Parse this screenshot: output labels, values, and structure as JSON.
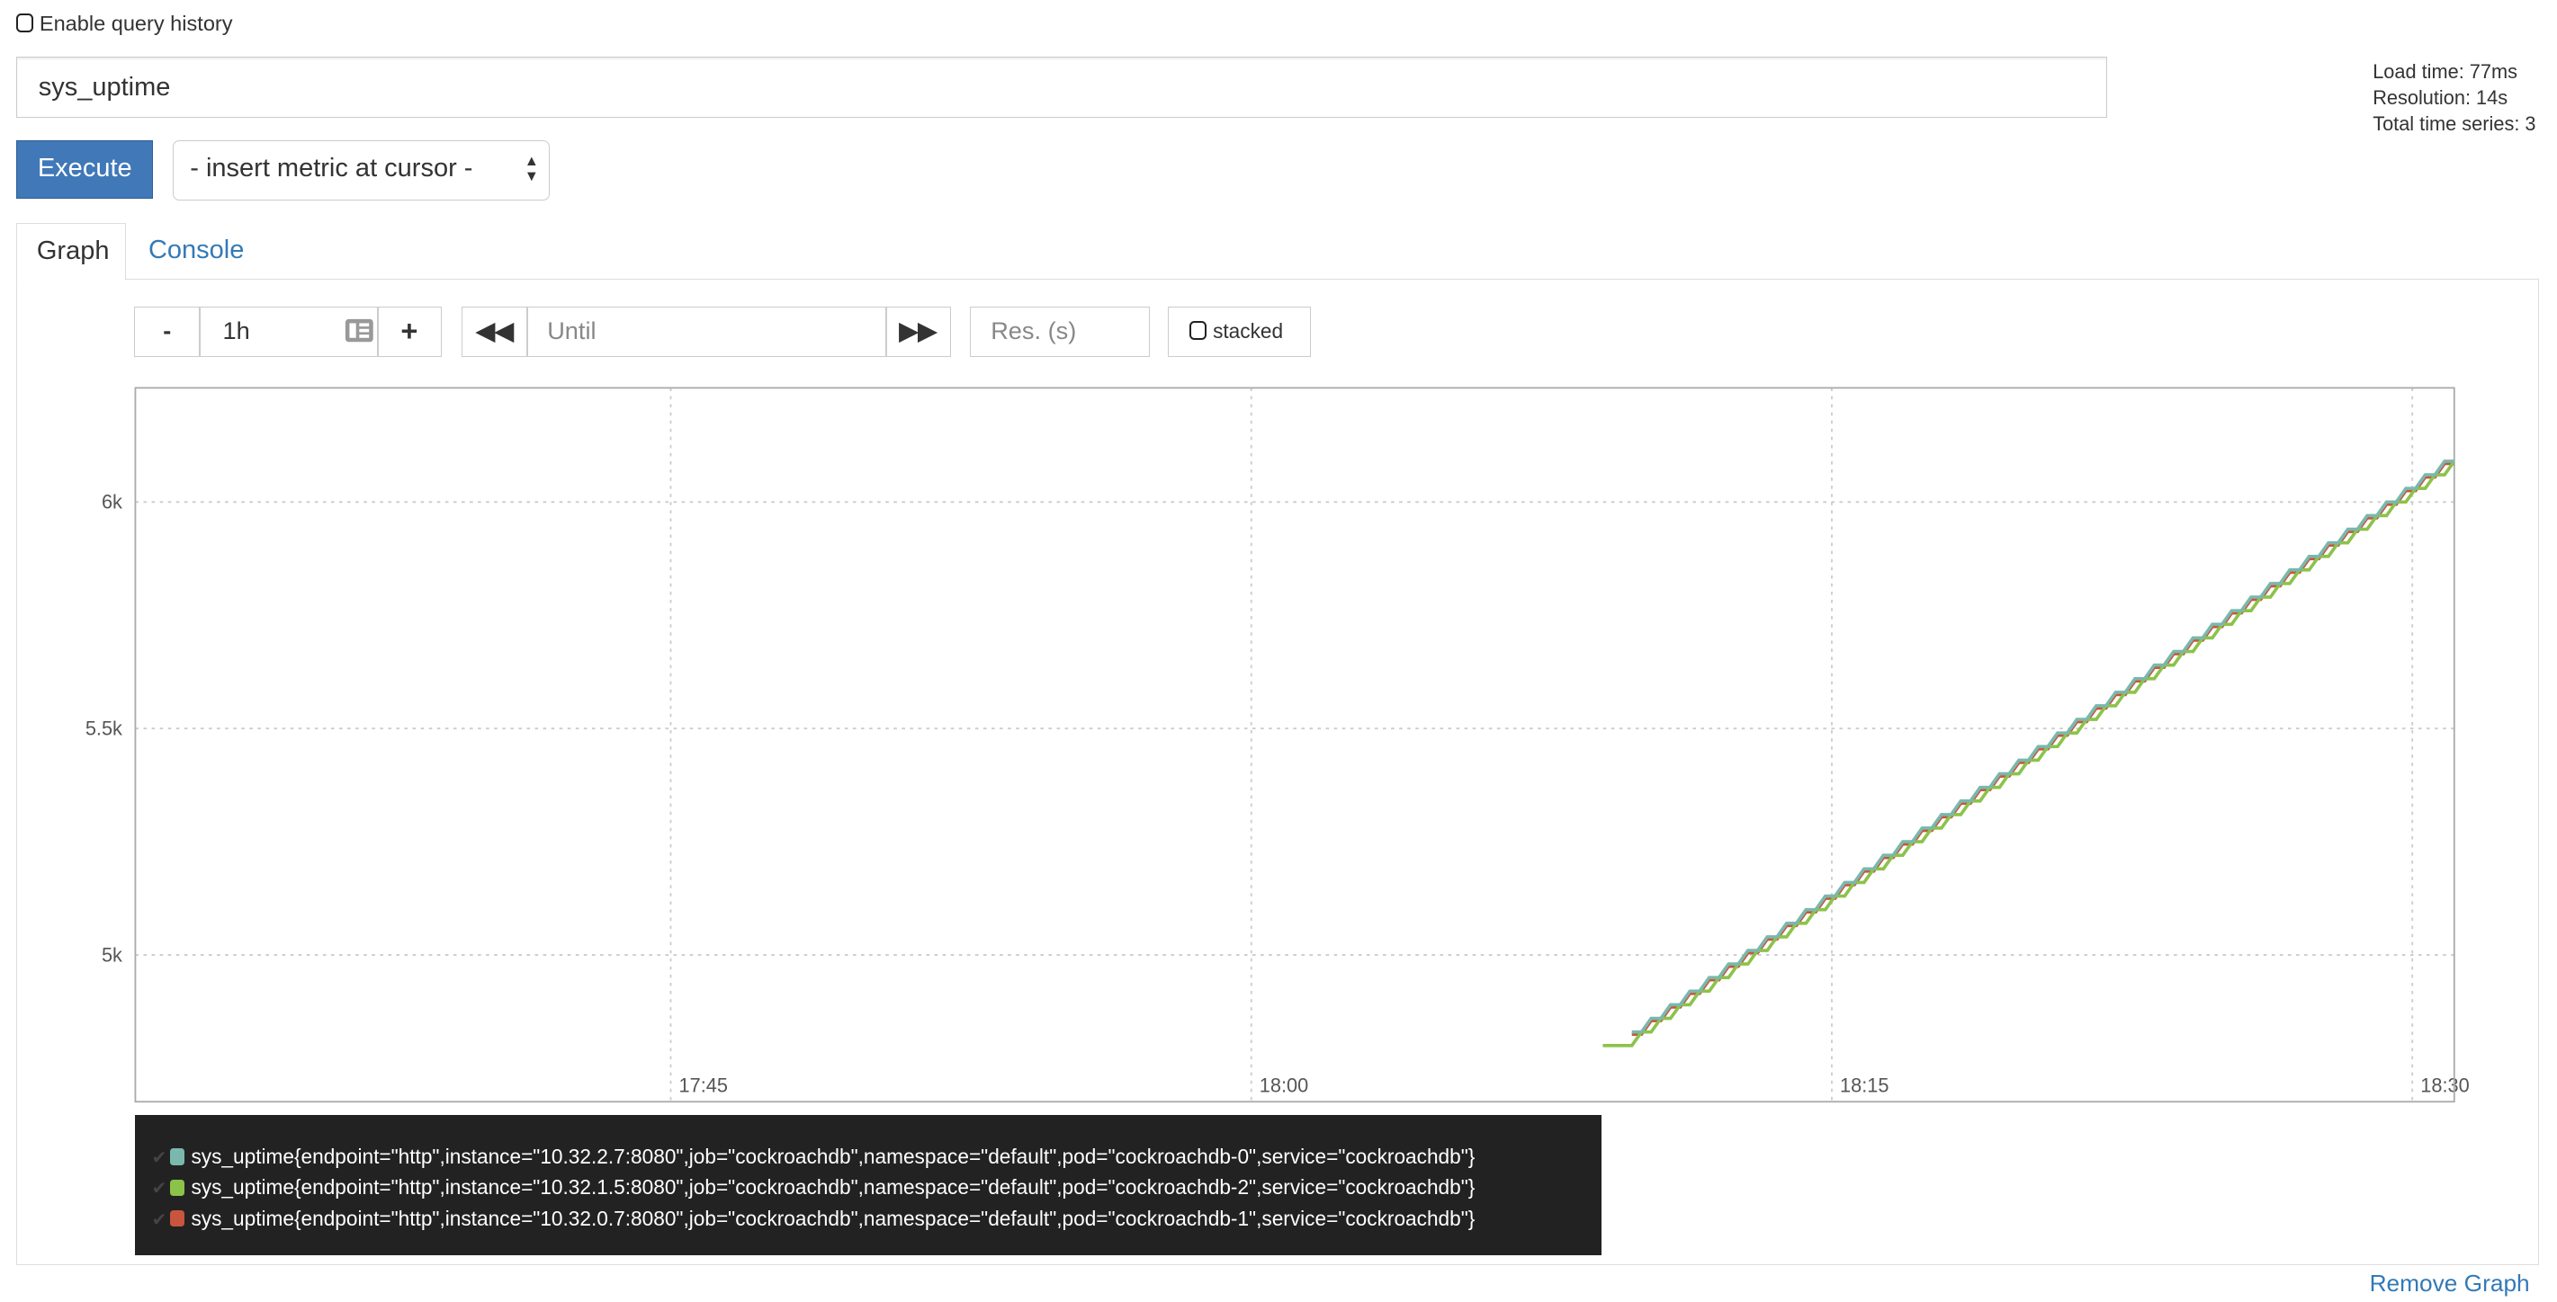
{
  "query_history": {
    "label": "Enable query history",
    "checked": false
  },
  "query": {
    "value": "sys_uptime"
  },
  "execute_label": "Execute",
  "metric_select": {
    "value": "- insert metric at cursor -"
  },
  "stats": {
    "load_time": "Load time: 77ms",
    "resolution": "Resolution: 14s",
    "total_series": "Total time series: 3"
  },
  "tabs": [
    {
      "label": "Graph",
      "active": true
    },
    {
      "label": "Console",
      "active": false
    }
  ],
  "controls": {
    "range_value": "1h",
    "minus": "-",
    "plus": "+",
    "until_placeholder": "Until",
    "res_placeholder": "Res. (s)",
    "stacked_label": "stacked",
    "icons": {
      "back": "fast-backward-icon",
      "forward": "fast-forward-icon",
      "calendar": "calendar-icon"
    }
  },
  "remove_graph_label": "Remove Graph",
  "chart_data": {
    "type": "line",
    "xlim": [
      "17:31:10",
      "18:31:05"
    ],
    "ylim": [
      4676,
      6252
    ],
    "x_ticks": [
      "17:45",
      "18:00",
      "18:15",
      "18:30"
    ],
    "y_ticks": [
      {
        "value": 5000,
        "label": "5k"
      },
      {
        "value": 5500,
        "label": "5.5k"
      },
      {
        "value": 6000,
        "label": "6k"
      }
    ],
    "grid": true,
    "legend_placement": "bottom",
    "sample_interval_s": 30,
    "series": [
      {
        "name": "sys_uptime{endpoint=\"http\",instance=\"10.32.2.7:8080\",job=\"cockroachdb\",namespace=\"default\",pod=\"cockroachdb-0\",service=\"cockroachdb\"}",
        "color": "#7ab8ad",
        "start": "18:09:50",
        "values": [
          4830,
          4860,
          4890,
          4920,
          4950,
          4980,
          5010,
          5040,
          5070,
          5100,
          5130,
          5160,
          5190,
          5220,
          5250,
          5280,
          5310,
          5340,
          5370,
          5400,
          5430,
          5460,
          5490,
          5520,
          5550,
          5580,
          5610,
          5640,
          5670,
          5700,
          5730,
          5760,
          5790,
          5820,
          5850,
          5880,
          5910,
          5940,
          5970,
          6000,
          6030,
          6060,
          6090,
          6120
        ]
      },
      {
        "name": "sys_uptime{endpoint=\"http\",instance=\"10.32.1.5:8080\",job=\"cockroachdb\",namespace=\"default\",pod=\"cockroachdb-2\",service=\"cockroachdb\"}",
        "color": "#8bc34a",
        "start": "18:09:05",
        "values": [
          4800,
          4800,
          4830,
          4860,
          4890,
          4920,
          4950,
          4980,
          5010,
          5040,
          5070,
          5100,
          5130,
          5160,
          5190,
          5220,
          5250,
          5280,
          5310,
          5340,
          5370,
          5400,
          5430,
          5460,
          5490,
          5520,
          5550,
          5580,
          5610,
          5640,
          5670,
          5700,
          5730,
          5760,
          5790,
          5820,
          5850,
          5880,
          5910,
          5940,
          5970,
          6000,
          6030,
          6060,
          6090
        ]
      },
      {
        "name": "sys_uptime{endpoint=\"http\",instance=\"10.32.0.7:8080\",job=\"cockroachdb\",namespace=\"default\",pod=\"cockroachdb-1\",service=\"cockroachdb\"}",
        "color": "#c8553d",
        "start": "18:09:50",
        "values": [
          4825,
          4855,
          4885,
          4915,
          4945,
          4975,
          5005,
          5035,
          5065,
          5095,
          5125,
          5155,
          5185,
          5215,
          5245,
          5275,
          5305,
          5335,
          5365,
          5395,
          5425,
          5455,
          5485,
          5515,
          5545,
          5575,
          5605,
          5635,
          5665,
          5695,
          5725,
          5755,
          5785,
          5815,
          5845,
          5875,
          5905,
          5935,
          5965,
          5995,
          6025,
          6055,
          6085,
          6110
        ]
      }
    ]
  }
}
